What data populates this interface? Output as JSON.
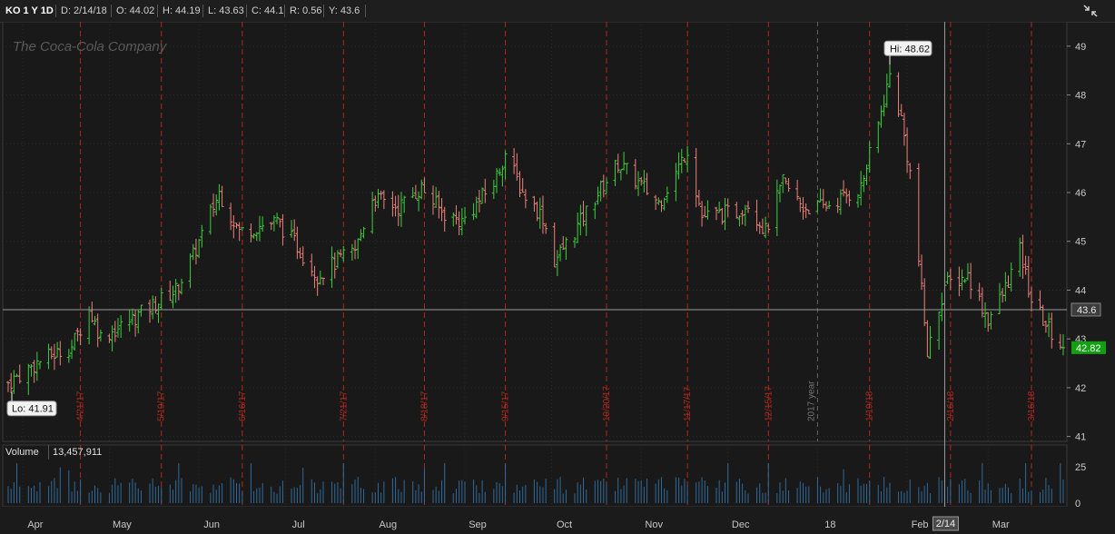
{
  "header": {
    "symbol": "KO 1 Y 1D",
    "date": "D: 2/14/18",
    "open": "O: 44.02",
    "high": "H: 44.19",
    "low": "L: 43.63",
    "close": "C: 44.1",
    "range": "R: 0.56",
    "y": "Y: 43.6",
    "corner_icon": "collapse-arrows-icon"
  },
  "watermark": "The Coca-Cola Company",
  "labels": {
    "hi": "Hi: 48.62",
    "lo": "Lo: 41.91",
    "crosshair_price": "43.6",
    "last_price": "42.82",
    "crosshair_date": "2/14",
    "year_marker": "2017 year"
  },
  "volume": {
    "label": "Volume",
    "value": "13,457,911"
  },
  "colors": {
    "up": "#3bd13b",
    "down": "#f0807a",
    "event_line": "#b3281e",
    "volume_bar": "#2f6a9a",
    "last_price_bg": "#12a012"
  },
  "chart_data": {
    "type": "ohlc",
    "price_axis": {
      "ylim": [
        40.9,
        49.5
      ],
      "ticks": [
        41,
        42,
        43,
        44,
        45,
        46,
        47,
        48,
        49
      ]
    },
    "volume_axis": {
      "ticks": [
        0,
        25
      ]
    },
    "month_labels": [
      "Apr",
      "May",
      "Jun",
      "Jul",
      "Aug",
      "Sep",
      "Oct",
      "Nov",
      "Dec",
      "18",
      "Feb",
      "Mar"
    ],
    "event_dates": [
      "4/21/17",
      "5/19/17",
      "6/16/17",
      "7/21/17",
      "8/18/17",
      "9/15/17",
      "10/20/17",
      "11/17/17",
      "12/15/17",
      "1/19/18",
      "2/16/18",
      "3/16/18"
    ],
    "close_path": [
      {
        "date": "2017-03-27",
        "close": 42.1
      },
      {
        "date": "2017-04-07",
        "close": 42.55
      },
      {
        "date": "2017-04-18",
        "close": 42.85
      },
      {
        "date": "2017-04-24",
        "close": 43.6
      },
      {
        "date": "2017-04-28",
        "close": 43.05
      },
      {
        "date": "2017-05-05",
        "close": 43.25
      },
      {
        "date": "2017-05-15",
        "close": 43.65
      },
      {
        "date": "2017-05-24",
        "close": 44.0
      },
      {
        "date": "2017-05-30",
        "close": 44.7
      },
      {
        "date": "2017-06-08",
        "close": 46.0
      },
      {
        "date": "2017-06-15",
        "close": 45.2
      },
      {
        "date": "2017-06-21",
        "close": 45.3
      },
      {
        "date": "2017-06-28",
        "close": 45.4
      },
      {
        "date": "2017-07-05",
        "close": 44.9
      },
      {
        "date": "2017-07-12",
        "close": 44.3
      },
      {
        "date": "2017-07-19",
        "close": 44.6
      },
      {
        "date": "2017-07-25",
        "close": 44.8
      },
      {
        "date": "2017-07-31",
        "close": 45.9
      },
      {
        "date": "2017-08-09",
        "close": 45.7
      },
      {
        "date": "2017-08-17",
        "close": 46.1
      },
      {
        "date": "2017-08-24",
        "close": 45.6
      },
      {
        "date": "2017-08-31",
        "close": 45.4
      },
      {
        "date": "2017-09-11",
        "close": 46.2
      },
      {
        "date": "2017-09-15",
        "close": 46.8
      },
      {
        "date": "2017-09-21",
        "close": 46.0
      },
      {
        "date": "2017-09-28",
        "close": 45.5
      },
      {
        "date": "2017-10-02",
        "close": 44.6
      },
      {
        "date": "2017-10-09",
        "close": 45.2
      },
      {
        "date": "2017-10-16",
        "close": 45.9
      },
      {
        "date": "2017-10-24",
        "close": 46.6
      },
      {
        "date": "2017-10-31",
        "close": 46.2
      },
      {
        "date": "2017-11-07",
        "close": 45.8
      },
      {
        "date": "2017-11-13",
        "close": 46.4
      },
      {
        "date": "2017-11-17",
        "close": 46.9
      },
      {
        "date": "2017-11-22",
        "close": 45.5
      },
      {
        "date": "2017-12-04",
        "close": 45.6
      },
      {
        "date": "2017-12-08",
        "close": 45.8
      },
      {
        "date": "2017-12-14",
        "close": 45.2
      },
      {
        "date": "2017-12-20",
        "close": 46.2
      },
      {
        "date": "2017-12-27",
        "close": 45.7
      },
      {
        "date": "2018-01-03",
        "close": 45.7
      },
      {
        "date": "2018-01-10",
        "close": 45.9
      },
      {
        "date": "2018-01-16",
        "close": 46.1
      },
      {
        "date": "2018-01-22",
        "close": 47.4
      },
      {
        "date": "2018-01-26",
        "close": 48.4
      },
      {
        "date": "2018-01-30",
        "close": 47.5
      },
      {
        "date": "2018-02-02",
        "close": 46.4
      },
      {
        "date": "2018-02-05",
        "close": 44.6
      },
      {
        "date": "2018-02-08",
        "close": 42.7
      },
      {
        "date": "2018-02-14",
        "close": 44.1
      },
      {
        "date": "2018-02-22",
        "close": 44.3
      },
      {
        "date": "2018-03-01",
        "close": 43.4
      },
      {
        "date": "2018-03-06",
        "close": 43.9
      },
      {
        "date": "2018-03-12",
        "close": 44.8
      },
      {
        "date": "2018-03-16",
        "close": 43.8
      },
      {
        "date": "2018-03-22",
        "close": 43.2
      },
      {
        "date": "2018-03-27",
        "close": 42.82
      }
    ],
    "high": 48.62,
    "low": 41.91,
    "last": 42.82,
    "crosshair": {
      "date": "2018-02-14",
      "price": 43.6
    },
    "bars": {
      "count": 245,
      "first": "2017-03-27",
      "last": "2018-03-27"
    },
    "volume_mean": 13,
    "volume_peak": 25
  }
}
